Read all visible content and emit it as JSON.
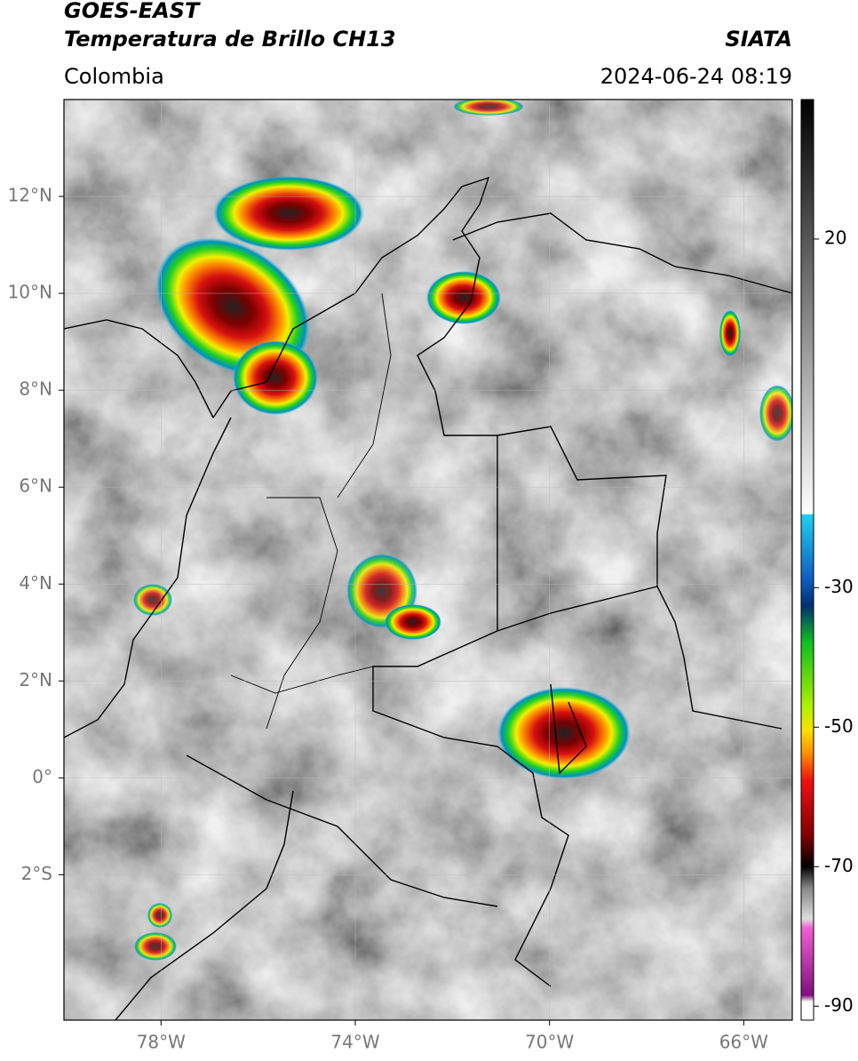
{
  "header": {
    "title": "GOES-EAST",
    "subtitle": "Temperatura de Brillo CH13",
    "source": "SIATA",
    "region": "Colombia",
    "datetime": "2024-06-24 08:19"
  },
  "map": {
    "xlim": [
      -80,
      -65
    ],
    "ylim": [
      -5,
      14
    ],
    "xticks": [
      {
        "value": -78,
        "label": "78°W"
      },
      {
        "value": -74,
        "label": "74°W"
      },
      {
        "value": -70,
        "label": "70°W"
      },
      {
        "value": -66,
        "label": "66°W"
      }
    ],
    "yticks": [
      {
        "value": 12,
        "label": "12°N"
      },
      {
        "value": 10,
        "label": "10°N"
      },
      {
        "value": 8,
        "label": "8°N"
      },
      {
        "value": 6,
        "label": "6°N"
      },
      {
        "value": 4,
        "label": "4°N"
      },
      {
        "value": 2,
        "label": "2°N"
      },
      {
        "value": 0,
        "label": "0°"
      },
      {
        "value": -2,
        "label": "2°S"
      }
    ],
    "grid": true
  },
  "colorbar": {
    "lim": [
      -92,
      40
    ],
    "ticks": [
      20,
      -30,
      -50,
      -70,
      -90
    ]
  }
}
